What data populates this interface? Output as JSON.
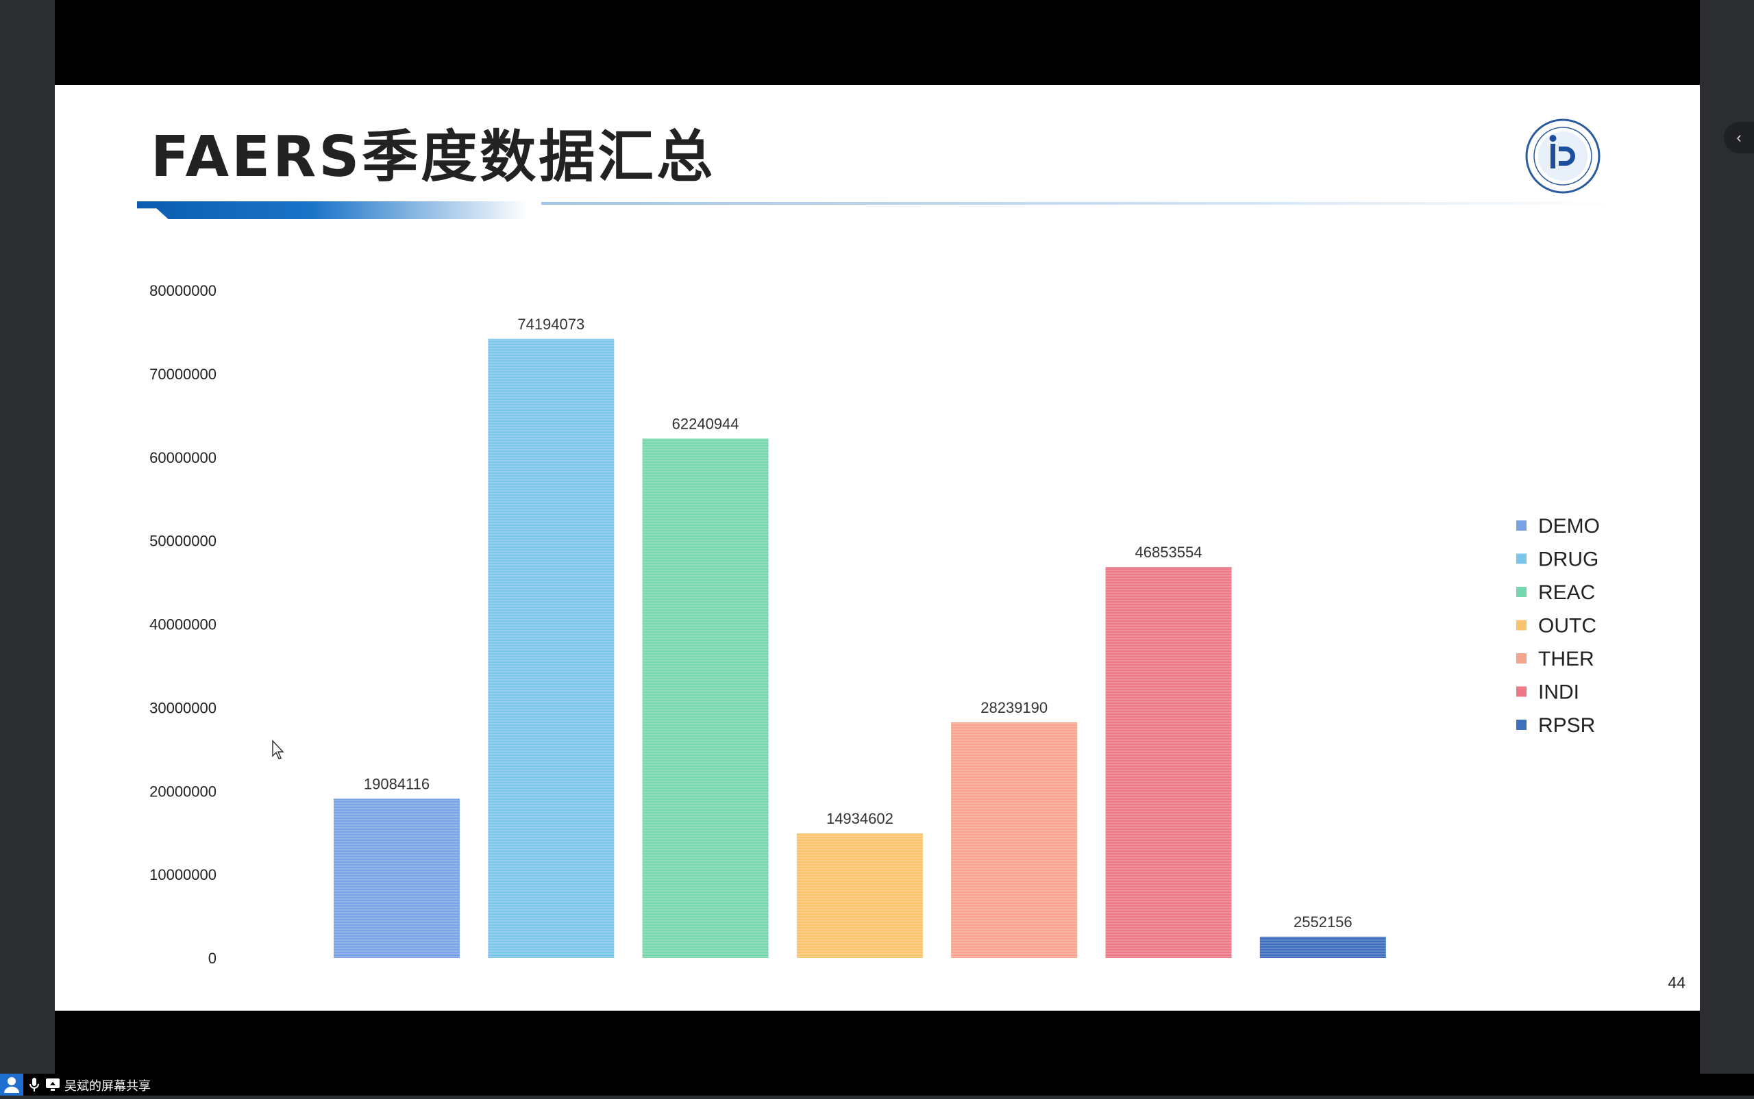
{
  "slide": {
    "title": "FAERS季度数据汇总",
    "page_number": "44"
  },
  "taskbar": {
    "share_label": "吴斌的屏幕共享"
  },
  "colors": {
    "DEMO": "#7aa3e6",
    "DRUG": "#7cc6ea",
    "REAC": "#78d6ae",
    "OUTC": "#fac46e",
    "THER": "#f6a48d",
    "INDI": "#ec7888",
    "RPSR": "#3e6fbd"
  },
  "chart_data": {
    "type": "bar",
    "categories": [
      "DEMO",
      "DRUG",
      "REAC",
      "OUTC",
      "THER",
      "INDI",
      "RPSR"
    ],
    "values": [
      19084116,
      74194073,
      62240944,
      14934602,
      28239190,
      46853554,
      2552156
    ],
    "data_labels": [
      "19084116",
      "74194073",
      "62240944",
      "14934602",
      "28239190",
      "46853554",
      "2552156"
    ],
    "y_ticks": [
      0,
      10000000,
      20000000,
      30000000,
      40000000,
      50000000,
      60000000,
      70000000,
      80000000
    ],
    "y_tick_labels": [
      "0",
      "10000000",
      "20000000",
      "30000000",
      "40000000",
      "50000000",
      "60000000",
      "70000000",
      "80000000"
    ],
    "ylim": [
      0,
      80000000
    ],
    "legend": [
      "DEMO",
      "DRUG",
      "REAC",
      "OUTC",
      "THER",
      "INDI",
      "RPSR"
    ],
    "legend_placement": "right",
    "grid": false,
    "title": "",
    "xlabel": "",
    "ylabel": ""
  }
}
